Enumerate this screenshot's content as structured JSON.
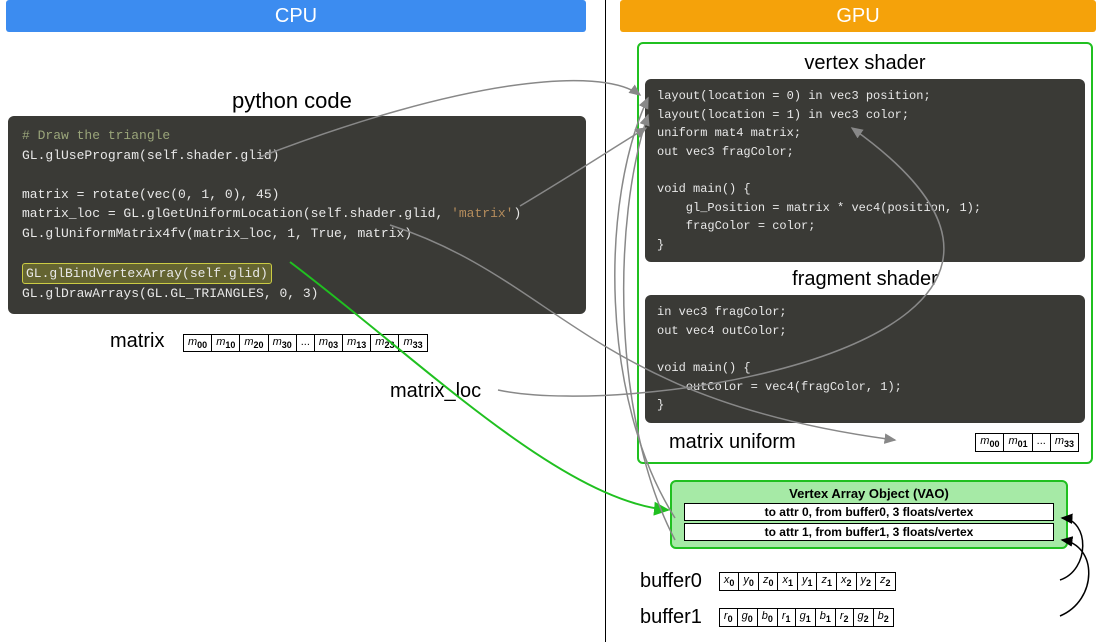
{
  "colors": {
    "cpu_header": "#3c8cf0",
    "gpu_header": "#f5a20a",
    "code_bg": "#3a3a36",
    "accent_border": "#20c020",
    "vao_fill": "#a6eaa6",
    "arrow_grey": "#888888",
    "arrow_green": "#20c020",
    "arrow_black": "#000000"
  },
  "header": {
    "cpu": "CPU",
    "gpu": "GPU"
  },
  "titles": {
    "python": "python code",
    "vertex": "vertex shader",
    "fragment": "fragment shader",
    "uniform": "matrix uniform"
  },
  "python_code": {
    "l1_comment": "# Draw the triangle",
    "l2": "GL.glUseProgram(self.shader.glid)",
    "l3": "",
    "l4": "matrix = rotate(vec(0, 1, 0), 45)",
    "l5a": "matrix_loc = GL.glGetUniformLocation(self.shader.glid, ",
    "l5b_str": "'matrix'",
    "l5c": ")",
    "l6": "GL.glUniformMatrix4fv(matrix_loc, 1, True, matrix)",
    "l7": "",
    "l8": "GL.glBindVertexArray(self.glid)",
    "l9": "GL.glDrawArrays(GL.GL_TRIANGLES, 0, 3)"
  },
  "matrix": {
    "label": "matrix",
    "cells": [
      "m00",
      "m10",
      "m20",
      "m30",
      "...",
      "m03",
      "m13",
      "m23",
      "m33"
    ]
  },
  "matrix_loc_label": "matrix_loc",
  "vertex_shader": {
    "l1a": "layout(location = 0) ",
    "l1b": "in",
    "l1c": " vec3 position;",
    "l2a": "layout(location = 1) ",
    "l2b": "in",
    "l2c": " vec3 color;",
    "l3a": "uniform mat4",
    "l3b": " matrix;",
    "l4a": "out",
    "l4b": " vec3 fragColor;",
    "l5": "",
    "l6a": "void",
    "l6b": " main() {",
    "l7a": "    gl_Position = matrix * ",
    "l7b": "vec4",
    "l7c": "(position, 1);",
    "l8": "    fragColor = color;",
    "l9": "}"
  },
  "fragment_shader": {
    "l1a": "in",
    "l1b": " vec3 fragColor;",
    "l2a": "out",
    "l2b": " vec4 outColor;",
    "l3": "",
    "l4a": "void",
    "l4b": " main() {",
    "l5a": "    outColor = ",
    "l5b": "vec4",
    "l5c": "(fragColor, 1);",
    "l6": "}"
  },
  "uniform_cells": [
    "m00",
    "m01",
    "...",
    "m33"
  ],
  "vao": {
    "title": "Vertex Array Object (VAO)",
    "r0": "to attr 0, from buffer0, 3 floats/vertex",
    "r1": "to attr 1, from buffer1, 3 floats/vertex"
  },
  "buffer0": {
    "label": "buffer0",
    "cells": [
      "x0",
      "y0",
      "z0",
      "x1",
      "y1",
      "z1",
      "x2",
      "y2",
      "z2"
    ]
  },
  "buffer1": {
    "label": "buffer1",
    "cells": [
      "r0",
      "g0",
      "b0",
      "r1",
      "g1",
      "b1",
      "r2",
      "g2",
      "b2"
    ]
  }
}
